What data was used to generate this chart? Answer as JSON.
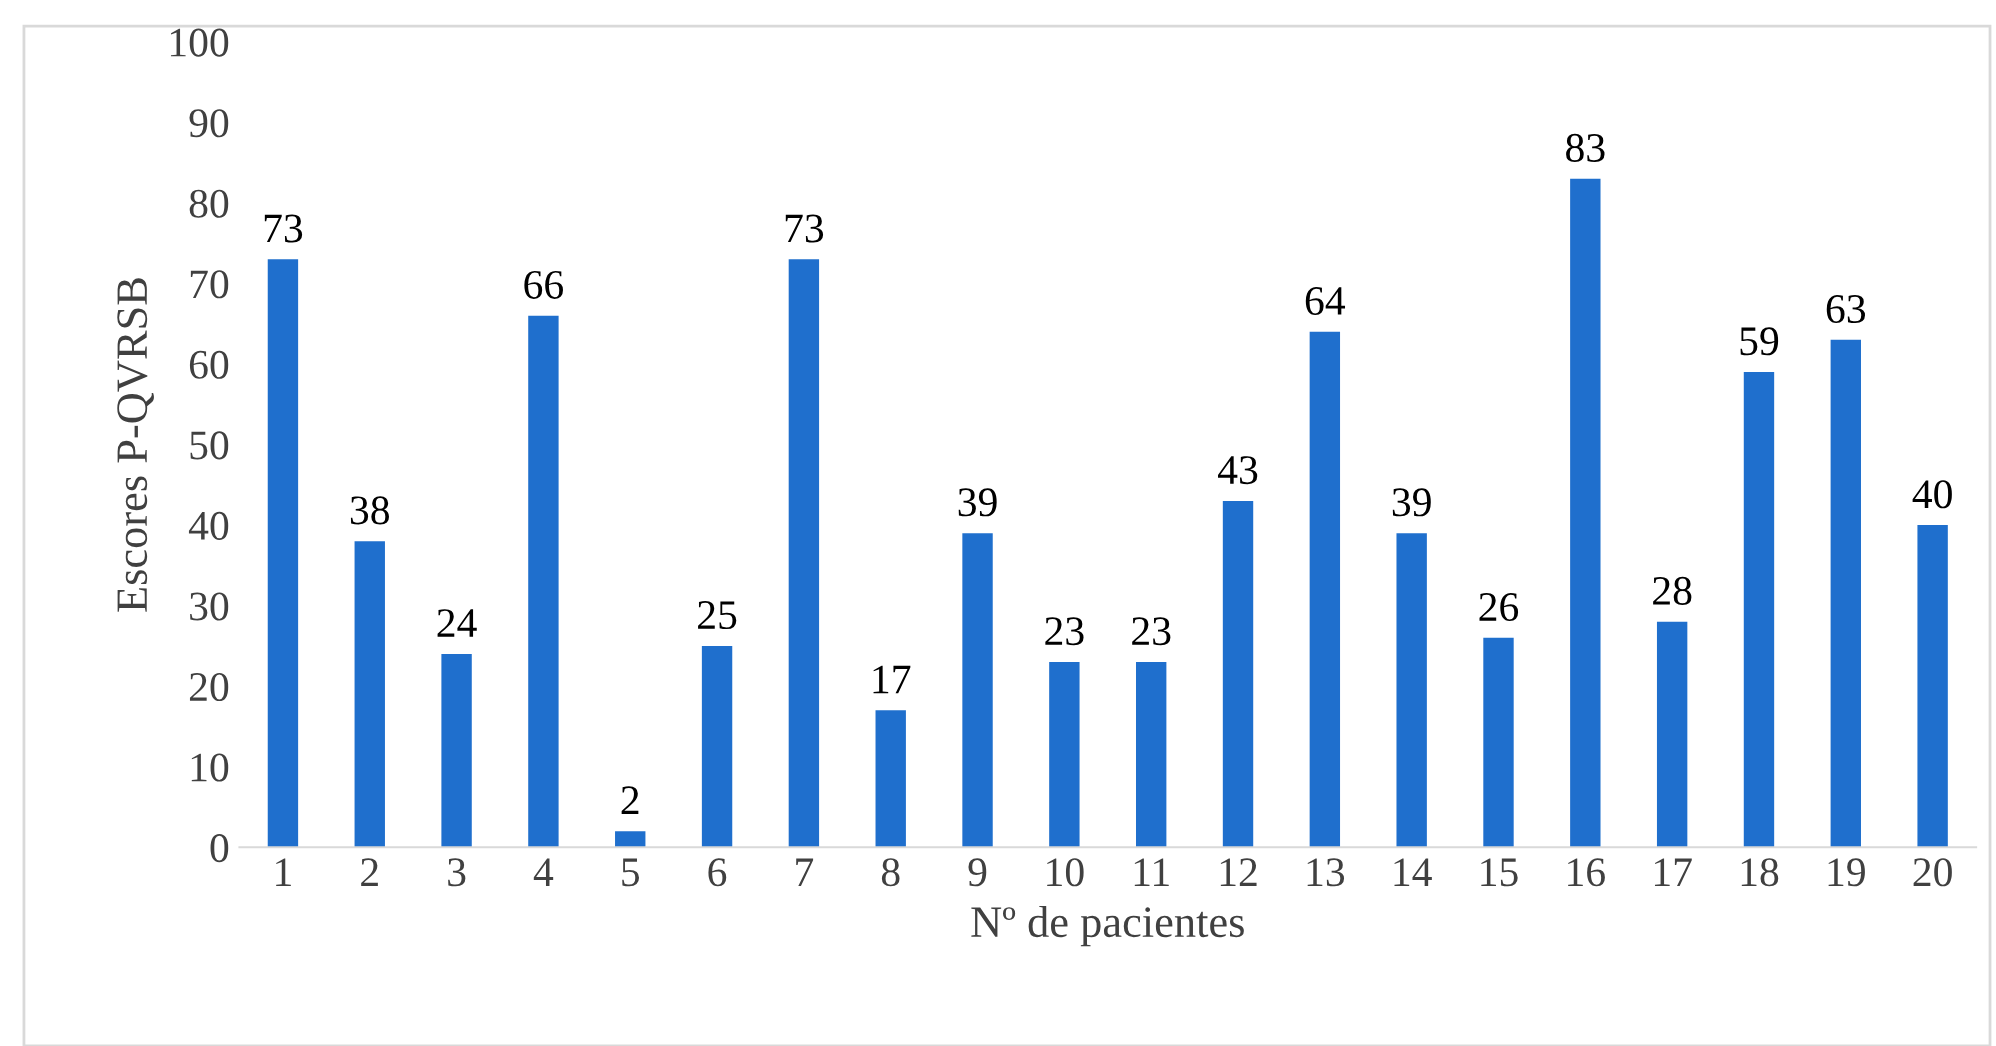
{
  "chart_data": {
    "type": "bar",
    "categories": [
      "1",
      "2",
      "3",
      "4",
      "5",
      "6",
      "7",
      "8",
      "9",
      "10",
      "11",
      "12",
      "13",
      "14",
      "15",
      "16",
      "17",
      "18",
      "19",
      "20"
    ],
    "values": [
      73,
      38,
      24,
      66,
      2,
      25,
      73,
      17,
      39,
      23,
      23,
      43,
      64,
      39,
      26,
      83,
      28,
      59,
      63,
      40
    ],
    "color": "#1f6fcd",
    "xlabel": "Nº de pacientes",
    "ylabel": "Escores P-QVRSB",
    "ylim": [
      0,
      100
    ],
    "yticks": [
      0,
      10,
      20,
      30,
      40,
      50,
      60,
      70,
      80,
      90,
      100
    ],
    "data_labels": true,
    "grid": false,
    "legend": false
  }
}
